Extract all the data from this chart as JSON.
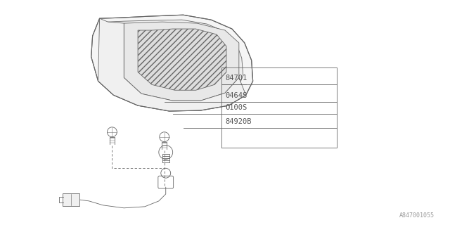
{
  "bg_color": "#ffffff",
  "line_color": "#666666",
  "text_color": "#555555",
  "part_labels": [
    "84701",
    "0464S",
    "O100S",
    "84920B"
  ],
  "watermark": "A847001055",
  "figsize": [
    6.4,
    3.2
  ],
  "dpi": 100
}
